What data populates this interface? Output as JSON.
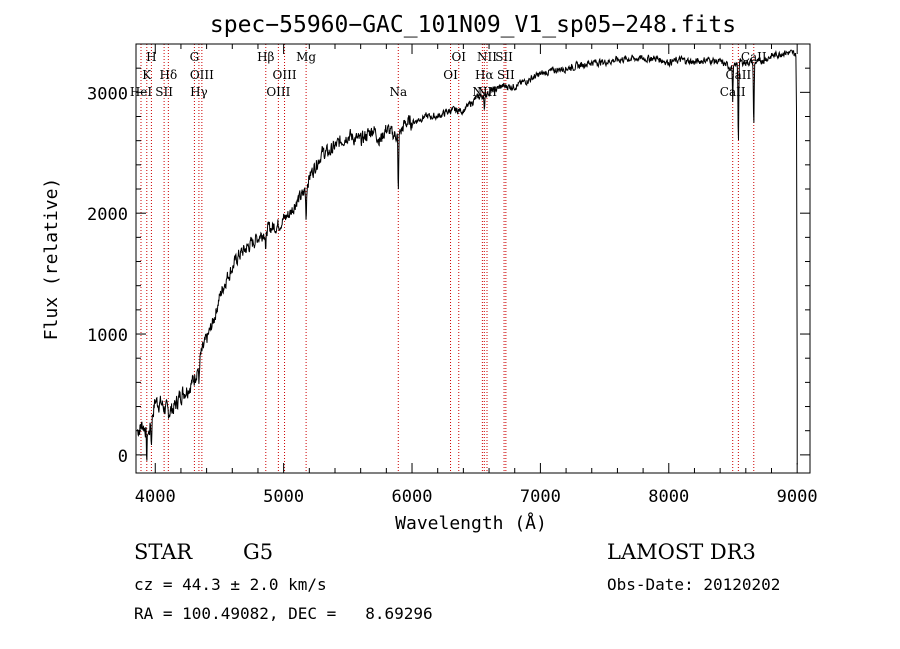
{
  "chart_data": {
    "type": "line",
    "title": "spec−55960−GAC_101N09_V1_sp05−248.fits",
    "xlabel": "Wavelength (Å)",
    "ylabel": "Flux (relative)",
    "xlim": [
      3850,
      9100
    ],
    "ylim": [
      -150,
      3400
    ],
    "x_ticks": [
      4000,
      5000,
      6000,
      7000,
      8000,
      9000
    ],
    "x_tick_labels": [
      "4000",
      "5000",
      "6000",
      "7000",
      "8000",
      "9000"
    ],
    "y_ticks": [
      0,
      1000,
      2000,
      3000
    ],
    "y_tick_labels": [
      "0",
      "1000",
      "2000",
      "3000"
    ],
    "x_minor_step": 200,
    "y_minor_step": 200,
    "spectrum_anchors": {
      "x": [
        3860,
        3900,
        3950,
        4000,
        4050,
        4100,
        4150,
        4200,
        4250,
        4300,
        4350,
        4400,
        4450,
        4500,
        4550,
        4600,
        4650,
        4700,
        4750,
        4800,
        4850,
        4900,
        4950,
        5000,
        5050,
        5100,
        5150,
        5200,
        5250,
        5300,
        5350,
        5400,
        5450,
        5500,
        5550,
        5600,
        5650,
        5700,
        5750,
        5800,
        5850,
        5900,
        5950,
        6000,
        6100,
        6200,
        6300,
        6400,
        6500,
        6563,
        6600,
        6700,
        6800,
        6900,
        7000,
        7100,
        7200,
        7300,
        7400,
        7500,
        7600,
        7700,
        7800,
        7900,
        8000,
        8100,
        8200,
        8300,
        8400,
        8500,
        8550,
        8600,
        8700,
        8800,
        8900,
        8980,
        9000
      ],
      "y": [
        200,
        250,
        180,
        450,
        420,
        350,
        400,
        500,
        550,
        620,
        800,
        950,
        1100,
        1300,
        1450,
        1550,
        1650,
        1700,
        1750,
        1800,
        1850,
        1880,
        1900,
        1950,
        2000,
        2100,
        2150,
        2300,
        2400,
        2500,
        2500,
        2550,
        2600,
        2650,
        2620,
        2600,
        2650,
        2700,
        2600,
        2700,
        2650,
        2650,
        2750,
        2750,
        2800,
        2800,
        2850,
        2850,
        2950,
        2980,
        3000,
        3050,
        3050,
        3100,
        3150,
        3180,
        3200,
        3220,
        3250,
        3250,
        3270,
        3280,
        3280,
        3280,
        3250,
        3270,
        3250,
        3270,
        3250,
        3200,
        3250,
        3250,
        3250,
        3300,
        3330,
        3320,
        3300
      ]
    },
    "series": [
      {
        "name": "spectrum",
        "color": "#000000"
      }
    ],
    "spectral_lines": [
      {
        "label": "H",
        "wavelength": 3970,
        "row": 0
      },
      {
        "label": "K",
        "wavelength": 3934,
        "row": 1
      },
      {
        "label": "HeI",
        "wavelength": 3889,
        "row": 2
      },
      {
        "label": "SII",
        "wavelength": 4069,
        "row": 2
      },
      {
        "label": "Hδ",
        "wavelength": 4102,
        "row": 1
      },
      {
        "label": "G",
        "wavelength": 4305,
        "row": 0
      },
      {
        "label": "OIII",
        "wavelength": 4363,
        "row": 1
      },
      {
        "label": "Hγ",
        "wavelength": 4340,
        "row": 2
      },
      {
        "label": "Hβ",
        "wavelength": 4861,
        "row": 0
      },
      {
        "label": "OIII",
        "wavelength": 5007,
        "row": 1
      },
      {
        "label": "OIII",
        "wavelength": 4959,
        "row": 2
      },
      {
        "label": "Mg",
        "wavelength": 5175,
        "row": 0
      },
      {
        "label": "Na",
        "wavelength": 5893,
        "row": 2
      },
      {
        "label": "OI",
        "wavelength": 6364,
        "row": 0
      },
      {
        "label": "OI",
        "wavelength": 6300,
        "row": 1
      },
      {
        "label": "NII",
        "wavelength": 6584,
        "row": 0
      },
      {
        "label": "SII",
        "wavelength": 6717,
        "row": 0
      },
      {
        "label": "Hα",
        "wavelength": 6563,
        "row": 1
      },
      {
        "label": "SII",
        "wavelength": 6731,
        "row": 1
      },
      {
        "label": "NII",
        "wavelength": 6548,
        "row": 2
      },
      {
        "label": "NII",
        "wavelength": 6584,
        "row": 2
      },
      {
        "label": "CaII",
        "wavelength": 8662,
        "row": 0
      },
      {
        "label": "CaII",
        "wavelength": 8542,
        "row": 1
      },
      {
        "label": "CaII",
        "wavelength": 8498,
        "row": 2
      }
    ],
    "line_color": "#cc0000"
  },
  "info": {
    "class": "STAR",
    "subclass": "G5",
    "redshift": "cz = 44.3 ± 2.0 km/s",
    "coords": "RA = 100.49082, DEC =   8.69296",
    "survey": "LAMOST DR3",
    "obs_date": "Obs-Date: 20120202"
  }
}
